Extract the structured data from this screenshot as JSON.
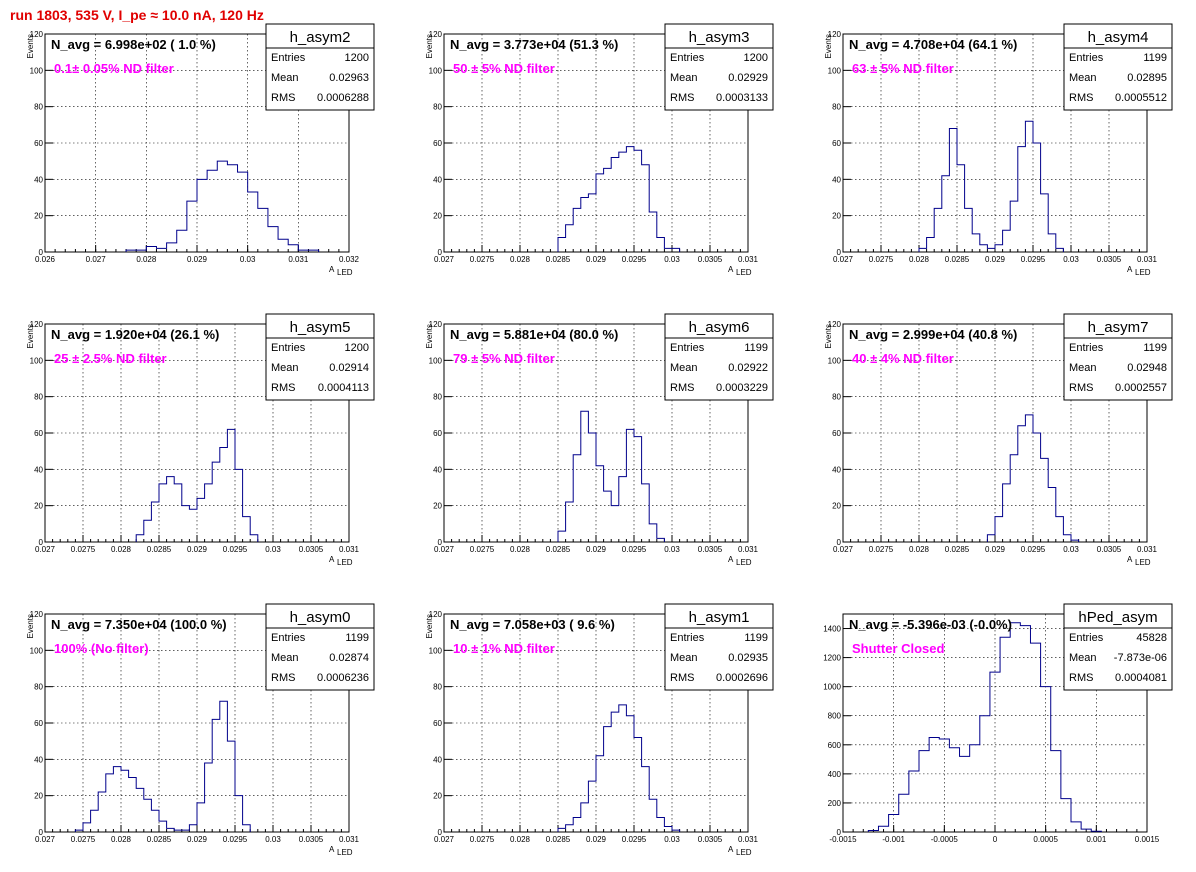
{
  "header": {
    "title": "run 1803,   535 V, I_pe ≈ 10.0 nA, 120 Hz",
    "color": "#e00000"
  },
  "colors": {
    "histogram": "#00008b",
    "navg": "#000000",
    "filter": "#ff00ff"
  },
  "chart_data": [
    {
      "type": "histogram",
      "name": "h_asym2",
      "navg": "N_avg = 6.998e+02 ( 1.0 %)",
      "filter": "0.1± 0.05% ND filter",
      "stats": {
        "entries_label": "Entries",
        "entries": "1200",
        "mean_label": "Mean",
        "mean": "0.02963",
        "rms_label": "RMS",
        "rms": "0.0006288"
      },
      "xlim": [
        0.026,
        0.032
      ],
      "xticks": [
        "0.026",
        "0.027",
        "0.028",
        "0.029",
        "0.03",
        "0.031",
        "0.032"
      ],
      "xlabel": "A",
      "xlabel_sub": "LED",
      "ylim": [
        0,
        120
      ],
      "yticks": [
        "0",
        "20",
        "40",
        "60",
        "80",
        "100",
        "120"
      ],
      "ylabel": "Events",
      "bins": [
        [
          0.0276,
          0.028,
          1
        ],
        [
          0.028,
          0.0282,
          3
        ],
        [
          0.0282,
          0.0284,
          2
        ],
        [
          0.0284,
          0.0286,
          5
        ],
        [
          0.0286,
          0.0288,
          12
        ],
        [
          0.0288,
          0.029,
          28
        ],
        [
          0.029,
          0.0292,
          40
        ],
        [
          0.0292,
          0.0294,
          45
        ],
        [
          0.0294,
          0.0296,
          50
        ],
        [
          0.0296,
          0.0298,
          48
        ],
        [
          0.0298,
          0.03,
          44
        ],
        [
          0.03,
          0.0302,
          33
        ],
        [
          0.0302,
          0.0304,
          24
        ],
        [
          0.0304,
          0.0306,
          14
        ],
        [
          0.0306,
          0.0308,
          7
        ],
        [
          0.0308,
          0.031,
          4
        ],
        [
          0.031,
          0.0314,
          1
        ]
      ]
    },
    {
      "type": "histogram",
      "name": "h_asym3",
      "navg": "N_avg = 3.773e+04 (51.3 %)",
      "filter": "50 ± 5% ND filter",
      "stats": {
        "entries_label": "Entries",
        "entries": "1200",
        "mean_label": "Mean",
        "mean": "0.02929",
        "rms_label": "RMS",
        "rms": "0.0003133"
      },
      "xlim": [
        0.027,
        0.031
      ],
      "xticks": [
        "0.027",
        "0.0275",
        "0.028",
        "0.0285",
        "0.029",
        "0.0295",
        "0.03",
        "0.0305",
        "0.031"
      ],
      "xlabel": "A",
      "xlabel_sub": "LED",
      "ylim": [
        0,
        120
      ],
      "yticks": [
        "0",
        "20",
        "40",
        "60",
        "80",
        "100",
        "120"
      ],
      "ylabel": "Events",
      "bins": [
        [
          0.0285,
          0.0286,
          8
        ],
        [
          0.0286,
          0.0287,
          15
        ],
        [
          0.0287,
          0.0288,
          24
        ],
        [
          0.0288,
          0.0289,
          30
        ],
        [
          0.0289,
          0.029,
          32
        ],
        [
          0.029,
          0.0291,
          43
        ],
        [
          0.0291,
          0.0292,
          46
        ],
        [
          0.0292,
          0.0293,
          52
        ],
        [
          0.0293,
          0.0294,
          55
        ],
        [
          0.0294,
          0.0295,
          58
        ],
        [
          0.0295,
          0.0296,
          56
        ],
        [
          0.0296,
          0.0297,
          48
        ],
        [
          0.0297,
          0.0298,
          22
        ],
        [
          0.0298,
          0.0299,
          8
        ],
        [
          0.0299,
          0.0301,
          2
        ]
      ]
    },
    {
      "type": "histogram",
      "name": "h_asym4",
      "navg": "N_avg = 4.708e+04 (64.1 %)",
      "filter": "63 ± 5% ND filter",
      "stats": {
        "entries_label": "Entries",
        "entries": "1199",
        "mean_label": "Mean",
        "mean": "0.02895",
        "rms_label": "RMS",
        "rms": "0.0005512"
      },
      "xlim": [
        0.027,
        0.031
      ],
      "xticks": [
        "0.027",
        "0.0275",
        "0.028",
        "0.0285",
        "0.029",
        "0.0295",
        "0.03",
        "0.0305",
        "0.031"
      ],
      "xlabel": "A",
      "xlabel_sub": "LED",
      "ylim": [
        0,
        120
      ],
      "yticks": [
        "0",
        "20",
        "40",
        "60",
        "80",
        "100",
        "120"
      ],
      "ylabel": "Events",
      "bins": [
        [
          0.028,
          0.0281,
          2
        ],
        [
          0.0281,
          0.0282,
          8
        ],
        [
          0.0282,
          0.0283,
          24
        ],
        [
          0.0283,
          0.0284,
          42
        ],
        [
          0.0284,
          0.0285,
          68
        ],
        [
          0.0285,
          0.0286,
          48
        ],
        [
          0.0286,
          0.0287,
          24
        ],
        [
          0.0287,
          0.0288,
          10
        ],
        [
          0.0288,
          0.0289,
          4
        ],
        [
          0.0289,
          0.029,
          2
        ],
        [
          0.029,
          0.0291,
          4
        ],
        [
          0.0291,
          0.0292,
          12
        ],
        [
          0.0292,
          0.0293,
          28
        ],
        [
          0.0293,
          0.0294,
          58
        ],
        [
          0.0294,
          0.0295,
          72
        ],
        [
          0.0295,
          0.0296,
          60
        ],
        [
          0.0296,
          0.0297,
          32
        ],
        [
          0.0297,
          0.0298,
          10
        ],
        [
          0.0298,
          0.0299,
          2
        ]
      ]
    },
    {
      "type": "histogram",
      "name": "h_asym5",
      "navg": "N_avg = 1.920e+04 (26.1 %)",
      "filter": "25 ± 2.5% ND filter",
      "stats": {
        "entries_label": "Entries",
        "entries": "1200",
        "mean_label": "Mean",
        "mean": "0.02914",
        "rms_label": "RMS",
        "rms": "0.0004113"
      },
      "xlim": [
        0.027,
        0.031
      ],
      "xticks": [
        "0.027",
        "0.0275",
        "0.028",
        "0.0285",
        "0.029",
        "0.0295",
        "0.03",
        "0.0305",
        "0.031"
      ],
      "xlabel": "A",
      "xlabel_sub": "LED",
      "ylim": [
        0,
        120
      ],
      "yticks": [
        "0",
        "20",
        "40",
        "60",
        "80",
        "100",
        "120"
      ],
      "ylabel": "Events",
      "bins": [
        [
          0.0282,
          0.0283,
          4
        ],
        [
          0.0283,
          0.0284,
          12
        ],
        [
          0.0284,
          0.0285,
          22
        ],
        [
          0.0285,
          0.0286,
          32
        ],
        [
          0.0286,
          0.0287,
          36
        ],
        [
          0.0287,
          0.0288,
          32
        ],
        [
          0.0288,
          0.0289,
          20
        ],
        [
          0.0289,
          0.029,
          18
        ],
        [
          0.029,
          0.0291,
          24
        ],
        [
          0.0291,
          0.0292,
          32
        ],
        [
          0.0292,
          0.0293,
          44
        ],
        [
          0.0293,
          0.0294,
          52
        ],
        [
          0.0294,
          0.0295,
          62
        ],
        [
          0.0295,
          0.0296,
          40
        ],
        [
          0.0296,
          0.0297,
          14
        ],
        [
          0.0297,
          0.0298,
          4
        ]
      ]
    },
    {
      "type": "histogram",
      "name": "h_asym6",
      "navg": "N_avg = 5.881e+04 (80.0 %)",
      "filter": "79 ± 5% ND filter",
      "stats": {
        "entries_label": "Entries",
        "entries": "1199",
        "mean_label": "Mean",
        "mean": "0.02922",
        "rms_label": "RMS",
        "rms": "0.0003229"
      },
      "xlim": [
        0.027,
        0.031
      ],
      "xticks": [
        "0.027",
        "0.0275",
        "0.028",
        "0.0285",
        "0.029",
        "0.0295",
        "0.03",
        "0.0305",
        "0.031"
      ],
      "xlabel": "A",
      "xlabel_sub": "LED",
      "ylim": [
        0,
        120
      ],
      "yticks": [
        "0",
        "20",
        "40",
        "60",
        "80",
        "100",
        "120"
      ],
      "ylabel": "Events",
      "bins": [
        [
          0.0285,
          0.0286,
          6
        ],
        [
          0.0286,
          0.0287,
          22
        ],
        [
          0.0287,
          0.0288,
          48
        ],
        [
          0.0288,
          0.0289,
          72
        ],
        [
          0.0289,
          0.029,
          60
        ],
        [
          0.029,
          0.0291,
          42
        ],
        [
          0.0291,
          0.0292,
          28
        ],
        [
          0.0292,
          0.0293,
          20
        ],
        [
          0.0293,
          0.0294,
          36
        ],
        [
          0.0294,
          0.0295,
          62
        ],
        [
          0.0295,
          0.0296,
          58
        ],
        [
          0.0296,
          0.0297,
          32
        ],
        [
          0.0297,
          0.0298,
          10
        ],
        [
          0.0298,
          0.0299,
          2
        ]
      ]
    },
    {
      "type": "histogram",
      "name": "h_asym7",
      "navg": "N_avg = 2.999e+04 (40.8 %)",
      "filter": "40 ± 4% ND filter",
      "stats": {
        "entries_label": "Entries",
        "entries": "1199",
        "mean_label": "Mean",
        "mean": "0.02948",
        "rms_label": "RMS",
        "rms": "0.0002557"
      },
      "xlim": [
        0.027,
        0.031
      ],
      "xticks": [
        "0.027",
        "0.0275",
        "0.028",
        "0.0285",
        "0.029",
        "0.0295",
        "0.03",
        "0.0305",
        "0.031"
      ],
      "xlabel": "A",
      "xlabel_sub": "LED",
      "ylim": [
        0,
        120
      ],
      "yticks": [
        "0",
        "20",
        "40",
        "60",
        "80",
        "100",
        "120"
      ],
      "ylabel": "Events",
      "bins": [
        [
          0.0289,
          0.029,
          4
        ],
        [
          0.029,
          0.0291,
          14
        ],
        [
          0.0291,
          0.0292,
          32
        ],
        [
          0.0292,
          0.0293,
          48
        ],
        [
          0.0293,
          0.0294,
          64
        ],
        [
          0.0294,
          0.0295,
          70
        ],
        [
          0.0295,
          0.0296,
          60
        ],
        [
          0.0296,
          0.0297,
          46
        ],
        [
          0.0297,
          0.0298,
          30
        ],
        [
          0.0298,
          0.0299,
          14
        ],
        [
          0.0299,
          0.03,
          4
        ],
        [
          0.03,
          0.0301,
          1
        ]
      ]
    },
    {
      "type": "histogram",
      "name": "h_asym0",
      "navg": "N_avg = 7.350e+04 (100.0 %)",
      "filter": "100% (No filter)",
      "stats": {
        "entries_label": "Entries",
        "entries": "1199",
        "mean_label": "Mean",
        "mean": "0.02874",
        "rms_label": "RMS",
        "rms": "0.0006236"
      },
      "xlim": [
        0.027,
        0.031
      ],
      "xticks": [
        "0.027",
        "0.0275",
        "0.028",
        "0.0285",
        "0.029",
        "0.0295",
        "0.03",
        "0.0305",
        "0.031"
      ],
      "xlabel": "A",
      "xlabel_sub": "LED",
      "ylim": [
        0,
        120
      ],
      "yticks": [
        "0",
        "20",
        "40",
        "60",
        "80",
        "100",
        "120"
      ],
      "ylabel": "Events",
      "bins": [
        [
          0.0274,
          0.0275,
          1
        ],
        [
          0.0275,
          0.0276,
          5
        ],
        [
          0.0276,
          0.0277,
          12
        ],
        [
          0.0277,
          0.0278,
          22
        ],
        [
          0.0278,
          0.0279,
          32
        ],
        [
          0.0279,
          0.028,
          36
        ],
        [
          0.028,
          0.0281,
          34
        ],
        [
          0.0281,
          0.0282,
          30
        ],
        [
          0.0282,
          0.0283,
          24
        ],
        [
          0.0283,
          0.0284,
          18
        ],
        [
          0.0284,
          0.0285,
          12
        ],
        [
          0.0285,
          0.0286,
          6
        ],
        [
          0.0286,
          0.0287,
          2
        ],
        [
          0.0287,
          0.0289,
          1
        ],
        [
          0.0289,
          0.029,
          4
        ],
        [
          0.029,
          0.0291,
          16
        ],
        [
          0.0291,
          0.0292,
          38
        ],
        [
          0.0292,
          0.0293,
          62
        ],
        [
          0.0293,
          0.0294,
          72
        ],
        [
          0.0294,
          0.0295,
          50
        ],
        [
          0.0295,
          0.0296,
          20
        ],
        [
          0.0296,
          0.0297,
          4
        ]
      ]
    },
    {
      "type": "histogram",
      "name": "h_asym1",
      "navg": "N_avg = 7.058e+03 ( 9.6 %)",
      "filter": "10 ± 1% ND filter",
      "stats": {
        "entries_label": "Entries",
        "entries": "1199",
        "mean_label": "Mean",
        "mean": "0.02935",
        "rms_label": "RMS",
        "rms": "0.0002696"
      },
      "xlim": [
        0.027,
        0.031
      ],
      "xticks": [
        "0.027",
        "0.0275",
        "0.028",
        "0.0285",
        "0.029",
        "0.0295",
        "0.03",
        "0.0305",
        "0.031"
      ],
      "xlabel": "A",
      "xlabel_sub": "LED",
      "ylim": [
        0,
        120
      ],
      "yticks": [
        "0",
        "20",
        "40",
        "60",
        "80",
        "100",
        "120"
      ],
      "ylabel": "Events",
      "bins": [
        [
          0.0285,
          0.0286,
          2
        ],
        [
          0.0286,
          0.0287,
          4
        ],
        [
          0.0287,
          0.0288,
          8
        ],
        [
          0.0288,
          0.0289,
          16
        ],
        [
          0.0289,
          0.029,
          28
        ],
        [
          0.029,
          0.0291,
          42
        ],
        [
          0.0291,
          0.0292,
          58
        ],
        [
          0.0292,
          0.0293,
          66
        ],
        [
          0.0293,
          0.0294,
          70
        ],
        [
          0.0294,
          0.0295,
          64
        ],
        [
          0.0295,
          0.0296,
          52
        ],
        [
          0.0296,
          0.0297,
          36
        ],
        [
          0.0297,
          0.0298,
          18
        ],
        [
          0.0298,
          0.0299,
          8
        ],
        [
          0.0299,
          0.03,
          3
        ],
        [
          0.03,
          0.0301,
          1
        ]
      ]
    },
    {
      "type": "histogram",
      "name": "hPed_asym",
      "navg": "N_avg = -5.396e-03 (-0.0%)",
      "filter": "Shutter Closed",
      "stats": {
        "entries_label": "Entries",
        "entries": "45828",
        "mean_label": "Mean",
        "mean": "-7.873e-06",
        "rms_label": "RMS",
        "rms": "0.0004081"
      },
      "xlim": [
        -0.0015,
        0.0015
      ],
      "xticks": [
        "-0.0015",
        "-0.001",
        "-0.0005",
        "0",
        "0.0005",
        "0.001",
        "0.0015"
      ],
      "xlabel": "",
      "xlabel_sub": "",
      "ylim": [
        0,
        1500
      ],
      "yticks": [
        "0",
        "200",
        "400",
        "600",
        "800",
        "1000",
        "1200",
        "1400"
      ],
      "ylabel": "",
      "bins": [
        [
          -0.00125,
          -0.00115,
          10
        ],
        [
          -0.00115,
          -0.00105,
          40
        ],
        [
          -0.00105,
          -0.00095,
          120
        ],
        [
          -0.00095,
          -0.00085,
          260
        ],
        [
          -0.00085,
          -0.00075,
          420
        ],
        [
          -0.00075,
          -0.00065,
          560
        ],
        [
          -0.00065,
          -0.00055,
          650
        ],
        [
          -0.00055,
          -0.00045,
          640
        ],
        [
          -0.00045,
          -0.00035,
          580
        ],
        [
          -0.00035,
          -0.00025,
          520
        ],
        [
          -0.00025,
          -0.00015,
          600
        ],
        [
          -0.00015,
          -5e-05,
          800
        ],
        [
          -5e-05,
          5e-05,
          1100
        ],
        [
          5e-05,
          0.00015,
          1340
        ],
        [
          0.00015,
          0.00025,
          1440
        ],
        [
          0.00025,
          0.00035,
          1420
        ],
        [
          0.00035,
          0.00045,
          1300
        ],
        [
          0.00045,
          0.00055,
          1000
        ],
        [
          0.00055,
          0.00065,
          560
        ],
        [
          0.00065,
          0.00075,
          230
        ],
        [
          0.00075,
          0.00085,
          70
        ],
        [
          0.00085,
          0.00095,
          20
        ],
        [
          0.00095,
          0.00105,
          5
        ]
      ]
    }
  ]
}
